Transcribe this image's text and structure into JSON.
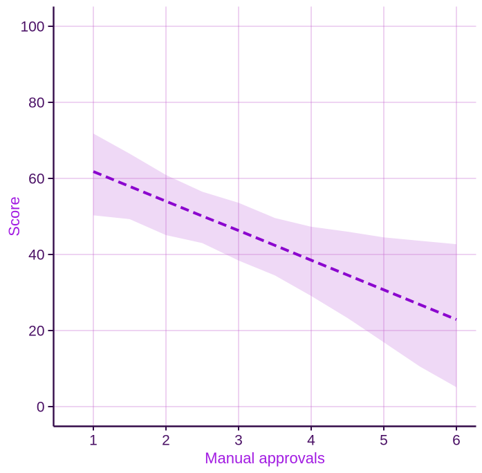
{
  "chart_data": {
    "type": "line",
    "subtype": "regression-fit-with-confidence-band",
    "title": "",
    "xlabel": "Manual approvals",
    "ylabel": "Score",
    "x_ticks": [
      1,
      2,
      3,
      4,
      5,
      6
    ],
    "x_tick_labels": [
      "1",
      "2",
      "3",
      "4",
      "5",
      "6"
    ],
    "y_ticks": [
      0,
      20,
      40,
      60,
      80,
      100
    ],
    "y_tick_labels": [
      "0",
      "20",
      "40",
      "60",
      "80",
      "100"
    ],
    "xlim": [
      0.45,
      6.27
    ],
    "ylim": [
      -5,
      105
    ],
    "grid": true,
    "legend": false,
    "x": [
      1,
      1.5,
      2,
      2.5,
      3,
      3.5,
      4,
      4.5,
      5,
      5.5,
      6
    ],
    "series": [
      {
        "name": "regression-fit",
        "line_style": "dashed",
        "values": [
          61.8,
          57.9,
          54.0,
          50.1,
          46.3,
          42.4,
          38.5,
          34.6,
          30.7,
          26.8,
          22.9
        ]
      }
    ],
    "ci_upper": [
      71.8,
      66.5,
      60.9,
      56.5,
      53.6,
      49.6,
      47.3,
      46.0,
      44.5,
      43.6,
      42.7
    ],
    "ci_lower": [
      50.3,
      49.3,
      45.1,
      43.0,
      38.4,
      34.5,
      29.1,
      23.3,
      16.9,
      10.5,
      5.1
    ],
    "colors": {
      "line": "#8B06CE",
      "band": "#EFD9F6",
      "grid": "rgba(198,105,208,0.38)",
      "axis": "#330A49",
      "tick_label": "#4A1065",
      "axis_title": "#A21BE2",
      "background": "#FFFFFF"
    }
  }
}
